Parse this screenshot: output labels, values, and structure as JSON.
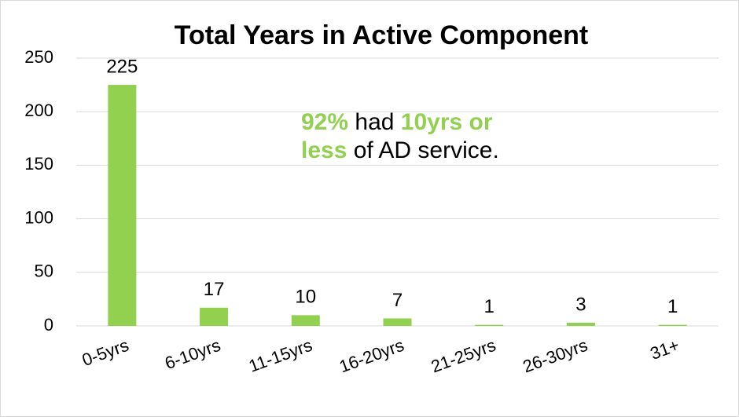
{
  "chart_data": {
    "type": "bar",
    "title": "Total Years in Active Component",
    "categories": [
      "0-5yrs",
      "6-10yrs",
      "11-15yrs",
      "16-20yrs",
      "21-25yrs",
      "26-30yrs",
      "31+"
    ],
    "values": [
      225,
      17,
      10,
      7,
      1,
      3,
      1
    ],
    "color": "#92d050",
    "ylim": [
      0,
      250
    ],
    "yticks": [
      0,
      50,
      100,
      150,
      200,
      250
    ],
    "grid": true,
    "annotation": {
      "emphasis_color": "#92d050",
      "lines": [
        [
          {
            "text": "92%",
            "emphasis": true
          },
          {
            "text": " had ",
            "emphasis": false
          },
          {
            "text": "10yrs or",
            "emphasis": true
          }
        ],
        [
          {
            "text": "less",
            "emphasis": true
          },
          {
            "text": " of AD service.",
            "emphasis": false
          }
        ]
      ]
    }
  }
}
